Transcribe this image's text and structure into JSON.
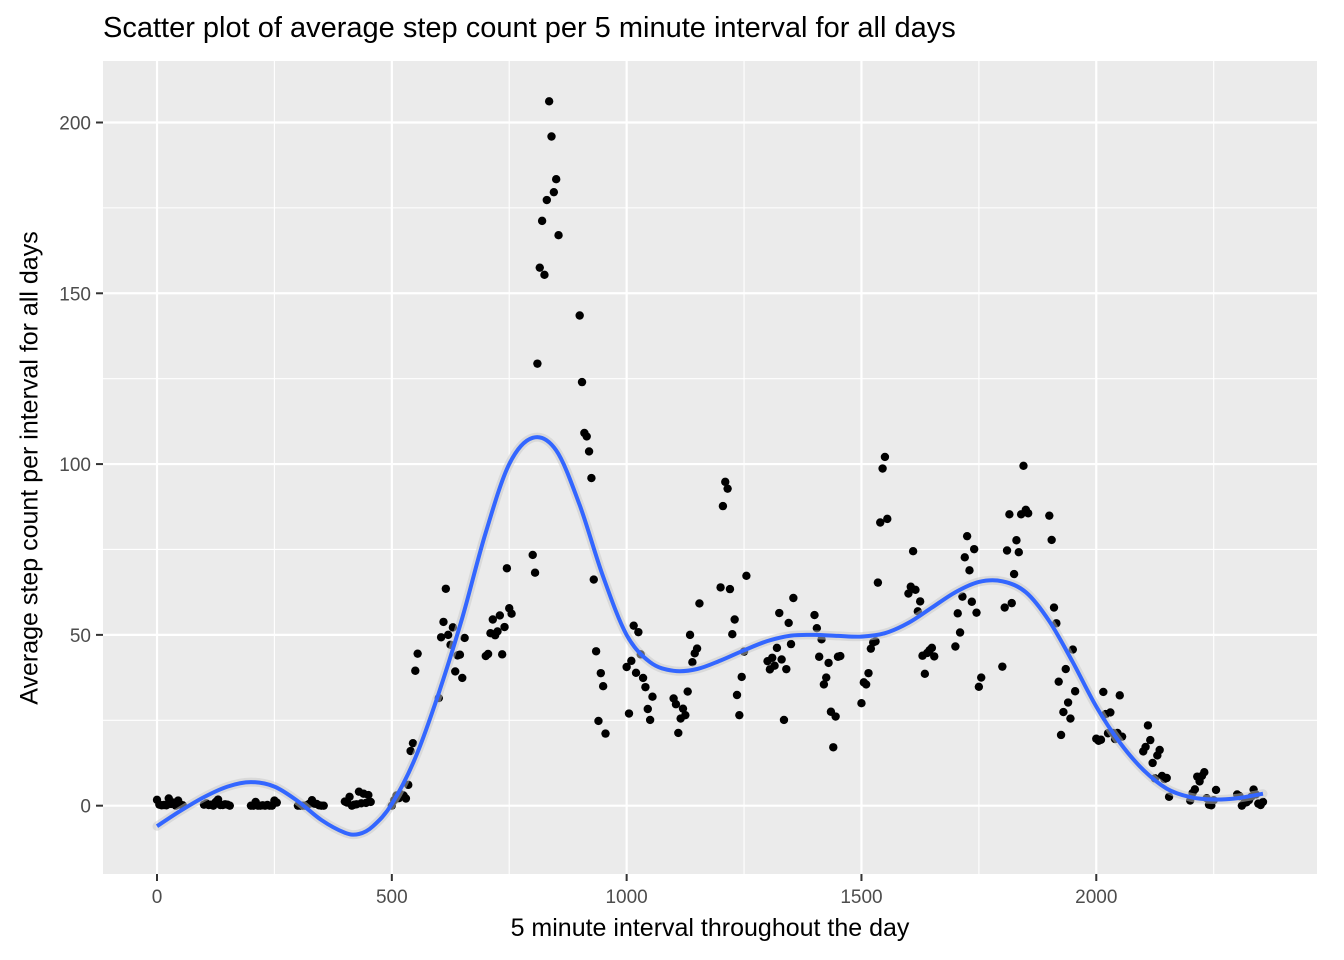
{
  "chart_data": {
    "type": "scatter",
    "title": "Scatter plot of average step count per 5 minute interval for all days",
    "xlabel": "5 minute interval throughout the day",
    "ylabel": "Average step count per interval for all days",
    "xlim": [
      -115,
      2470
    ],
    "ylim": [
      -20,
      218
    ],
    "x_ticks": [
      0,
      500,
      1000,
      1500,
      2000
    ],
    "y_ticks": [
      0,
      50,
      100,
      150,
      200
    ],
    "grid": true,
    "colors": {
      "panel": "#ebebeb",
      "grid": "#ffffff",
      "point": "#000000",
      "smooth": "#3366ff"
    },
    "points": [
      [
        0,
        1.7
      ],
      [
        5,
        0.3
      ],
      [
        10,
        0.1
      ],
      [
        15,
        0.2
      ],
      [
        20,
        0.1
      ],
      [
        25,
        2.1
      ],
      [
        30,
        0.5
      ],
      [
        35,
        0.9
      ],
      [
        40,
        0
      ],
      [
        45,
        1.5
      ],
      [
        50,
        0.3
      ],
      [
        55,
        0.1
      ],
      [
        100,
        0.3
      ],
      [
        105,
        0.7
      ],
      [
        110,
        0.2
      ],
      [
        115,
        0.3
      ],
      [
        120,
        0
      ],
      [
        125,
        1.1
      ],
      [
        130,
        1.8
      ],
      [
        135,
        0.2
      ],
      [
        140,
        0.2
      ],
      [
        145,
        0.4
      ],
      [
        150,
        0.3
      ],
      [
        155,
        0
      ],
      [
        200,
        0
      ],
      [
        205,
        0
      ],
      [
        210,
        1.1
      ],
      [
        215,
        0
      ],
      [
        220,
        0
      ],
      [
        225,
        0.1
      ],
      [
        230,
        0
      ],
      [
        235,
        0.2
      ],
      [
        240,
        0
      ],
      [
        245,
        0
      ],
      [
        250,
        1.5
      ],
      [
        255,
        0.9
      ],
      [
        300,
        0
      ],
      [
        305,
        0
      ],
      [
        310,
        0
      ],
      [
        315,
        0
      ],
      [
        320,
        0.2
      ],
      [
        325,
        0.6
      ],
      [
        330,
        1.6
      ],
      [
        335,
        0.6
      ],
      [
        340,
        0.5
      ],
      [
        345,
        0.1
      ],
      [
        350,
        0
      ],
      [
        355,
        0
      ],
      [
        400,
        1.2
      ],
      [
        405,
        0.9
      ],
      [
        410,
        2.6
      ],
      [
        415,
        0
      ],
      [
        420,
        0.3
      ],
      [
        425,
        0.4
      ],
      [
        430,
        4.1
      ],
      [
        435,
        0.7
      ],
      [
        440,
        3.5
      ],
      [
        445,
        0.8
      ],
      [
        450,
        3.1
      ],
      [
        455,
        1.1
      ],
      [
        500,
        0
      ],
      [
        505,
        1.6
      ],
      [
        510,
        3
      ],
      [
        515,
        2.2
      ],
      [
        520,
        3.3
      ],
      [
        525,
        3
      ],
      [
        530,
        2.1
      ],
      [
        535,
        6.1
      ],
      [
        540,
        16
      ],
      [
        545,
        18.3
      ],
      [
        550,
        39.5
      ],
      [
        555,
        44.5
      ],
      [
        600,
        31.5
      ],
      [
        605,
        49.3
      ],
      [
        610,
        53.8
      ],
      [
        615,
        63.5
      ],
      [
        620,
        50
      ],
      [
        625,
        47.1
      ],
      [
        630,
        52.2
      ],
      [
        635,
        39.3
      ],
      [
        640,
        44
      ],
      [
        645,
        44.2
      ],
      [
        650,
        37.4
      ],
      [
        655,
        49.1
      ],
      [
        700,
        43.8
      ],
      [
        705,
        44.4
      ],
      [
        710,
        50.5
      ],
      [
        715,
        54.5
      ],
      [
        720,
        49.9
      ],
      [
        725,
        51
      ],
      [
        730,
        55.7
      ],
      [
        735,
        44.3
      ],
      [
        740,
        52.3
      ],
      [
        745,
        69.5
      ],
      [
        750,
        57.8
      ],
      [
        755,
        56.2
      ],
      [
        800,
        73.4
      ],
      [
        805,
        68.2
      ],
      [
        810,
        129.4
      ],
      [
        815,
        157.5
      ],
      [
        820,
        171.2
      ],
      [
        825,
        155.4
      ],
      [
        830,
        177.3
      ],
      [
        835,
        206.2
      ],
      [
        840,
        195.9
      ],
      [
        845,
        179.6
      ],
      [
        850,
        183.4
      ],
      [
        855,
        167
      ],
      [
        900,
        143.5
      ],
      [
        905,
        124
      ],
      [
        910,
        109.1
      ],
      [
        915,
        108.1
      ],
      [
        920,
        103.7
      ],
      [
        925,
        95.9
      ],
      [
        930,
        66.2
      ],
      [
        935,
        45.2
      ],
      [
        940,
        24.8
      ],
      [
        945,
        38.8
      ],
      [
        950,
        34.98
      ],
      [
        955,
        21.1
      ],
      [
        1000,
        40.6
      ],
      [
        1005,
        26.98
      ],
      [
        1010,
        42.4
      ],
      [
        1015,
        52.7
      ],
      [
        1020,
        38.9
      ],
      [
        1025,
        50.8
      ],
      [
        1030,
        44.3
      ],
      [
        1035,
        37.4
      ],
      [
        1040,
        34.7
      ],
      [
        1045,
        28.3
      ],
      [
        1050,
        25.1
      ],
      [
        1055,
        31.9
      ],
      [
        1100,
        31.4
      ],
      [
        1105,
        29.7
      ],
      [
        1110,
        21.3
      ],
      [
        1115,
        25.5
      ],
      [
        1120,
        28.4
      ],
      [
        1125,
        26.5
      ],
      [
        1130,
        33.4
      ],
      [
        1135,
        50
      ],
      [
        1140,
        42
      ],
      [
        1145,
        44.6
      ],
      [
        1150,
        46
      ],
      [
        1155,
        59.2
      ],
      [
        1200,
        63.9
      ],
      [
        1205,
        87.7
      ],
      [
        1210,
        94.8
      ],
      [
        1215,
        92.8
      ],
      [
        1220,
        63.4
      ],
      [
        1225,
        50.2
      ],
      [
        1230,
        54.5
      ],
      [
        1235,
        32.4
      ],
      [
        1240,
        26.5
      ],
      [
        1245,
        37.7
      ],
      [
        1250,
        45.1
      ],
      [
        1255,
        67.3
      ],
      [
        1300,
        42.3
      ],
      [
        1305,
        39.9
      ],
      [
        1310,
        43.3
      ],
      [
        1315,
        40.98
      ],
      [
        1320,
        46.2
      ],
      [
        1325,
        56.4
      ],
      [
        1330,
        42.8
      ],
      [
        1335,
        25.1
      ],
      [
        1340,
        39.97
      ],
      [
        1345,
        53.5
      ],
      [
        1350,
        47.3
      ],
      [
        1355,
        60.8
      ],
      [
        1400,
        55.8
      ],
      [
        1405,
        51.96
      ],
      [
        1410,
        43.6
      ],
      [
        1415,
        48.7
      ],
      [
        1420,
        35.5
      ],
      [
        1425,
        37.5
      ],
      [
        1430,
        41.8
      ],
      [
        1435,
        27.5
      ],
      [
        1440,
        17.1
      ],
      [
        1445,
        26.1
      ],
      [
        1450,
        43.6
      ],
      [
        1455,
        43.8
      ],
      [
        1500,
        30
      ],
      [
        1505,
        36.1
      ],
      [
        1510,
        35.5
      ],
      [
        1515,
        38.8
      ],
      [
        1520,
        45.96
      ],
      [
        1525,
        47.8
      ],
      [
        1530,
        48.1
      ],
      [
        1535,
        65.3
      ],
      [
        1540,
        82.9
      ],
      [
        1545,
        98.7
      ],
      [
        1550,
        102.1
      ],
      [
        1555,
        83.96
      ],
      [
        1600,
        62.1
      ],
      [
        1605,
        64.1
      ],
      [
        1610,
        74.5
      ],
      [
        1615,
        63.2
      ],
      [
        1620,
        56.9
      ],
      [
        1625,
        59.8
      ],
      [
        1630,
        43.9
      ],
      [
        1635,
        38.6
      ],
      [
        1640,
        44.7
      ],
      [
        1645,
        45.5
      ],
      [
        1650,
        46.2
      ],
      [
        1655,
        43.7
      ],
      [
        1700,
        46.6
      ],
      [
        1705,
        56.3
      ],
      [
        1710,
        50.7
      ],
      [
        1715,
        61.2
      ],
      [
        1720,
        72.7
      ],
      [
        1725,
        78.9
      ],
      [
        1730,
        68.9
      ],
      [
        1735,
        59.7
      ],
      [
        1740,
        75.1
      ],
      [
        1745,
        56.5
      ],
      [
        1750,
        34.8
      ],
      [
        1755,
        37.5
      ],
      [
        1800,
        40.7
      ],
      [
        1805,
        58
      ],
      [
        1810,
        74.7
      ],
      [
        1815,
        85.3
      ],
      [
        1820,
        59.3
      ],
      [
        1825,
        67.8
      ],
      [
        1830,
        77.7
      ],
      [
        1835,
        74.2
      ],
      [
        1840,
        85.3
      ],
      [
        1845,
        99.5
      ],
      [
        1850,
        86.6
      ],
      [
        1855,
        85.6
      ],
      [
        1900,
        84.9
      ],
      [
        1905,
        77.8
      ],
      [
        1910,
        58
      ],
      [
        1915,
        53.4
      ],
      [
        1920,
        36.3
      ],
      [
        1925,
        20.7
      ],
      [
        1930,
        27.4
      ],
      [
        1935,
        40
      ],
      [
        1940,
        30.2
      ],
      [
        1945,
        25.5
      ],
      [
        1950,
        45.7
      ],
      [
        1955,
        33.5
      ],
      [
        2000,
        19.6
      ],
      [
        2005,
        19
      ],
      [
        2010,
        19.3
      ],
      [
        2015,
        33.3
      ],
      [
        2020,
        26.8
      ],
      [
        2025,
        21.2
      ],
      [
        2030,
        27.3
      ],
      [
        2035,
        21.3
      ],
      [
        2040,
        19.5
      ],
      [
        2045,
        21.3
      ],
      [
        2050,
        32.3
      ],
      [
        2055,
        20.2
      ],
      [
        2100,
        15.9
      ],
      [
        2105,
        17.2
      ],
      [
        2110,
        23.5
      ],
      [
        2115,
        19.2
      ],
      [
        2120,
        12.5
      ],
      [
        2125,
        8
      ],
      [
        2130,
        14.7
      ],
      [
        2135,
        16.3
      ],
      [
        2140,
        8.7
      ],
      [
        2145,
        7.8
      ],
      [
        2150,
        8.1
      ],
      [
        2155,
        2.6
      ],
      [
        2200,
        1.5
      ],
      [
        2205,
        3.7
      ],
      [
        2210,
        4.8
      ],
      [
        2215,
        8.5
      ],
      [
        2220,
        7.1
      ],
      [
        2225,
        8.7
      ],
      [
        2230,
        9.8
      ],
      [
        2235,
        2.2
      ],
      [
        2240,
        0.3
      ],
      [
        2245,
        0.1
      ],
      [
        2250,
        1.6
      ],
      [
        2255,
        4.6
      ],
      [
        2300,
        3.3
      ],
      [
        2305,
        2.8
      ],
      [
        2310,
        0
      ],
      [
        2315,
        0.8
      ],
      [
        2320,
        1
      ],
      [
        2325,
        1.6
      ],
      [
        2330,
        2.6
      ],
      [
        2335,
        4.7
      ],
      [
        2340,
        3.3
      ],
      [
        2345,
        0.6
      ],
      [
        2350,
        0.2
      ],
      [
        2355,
        1.1
      ]
    ],
    "smooth": [
      [
        0,
        -6
      ],
      [
        50,
        -1.5
      ],
      [
        100,
        2.5
      ],
      [
        150,
        5.6
      ],
      [
        200,
        6.9
      ],
      [
        250,
        5.6
      ],
      [
        300,
        1.3
      ],
      [
        350,
        -4.2
      ],
      [
        400,
        -7.9
      ],
      [
        430,
        -8.3
      ],
      [
        460,
        -6
      ],
      [
        500,
        0.5
      ],
      [
        550,
        14
      ],
      [
        600,
        33
      ],
      [
        650,
        55
      ],
      [
        700,
        80
      ],
      [
        750,
        100
      ],
      [
        800,
        107.7
      ],
      [
        850,
        104
      ],
      [
        900,
        88
      ],
      [
        950,
        67
      ],
      [
        1000,
        50
      ],
      [
        1050,
        42
      ],
      [
        1100,
        39.5
      ],
      [
        1150,
        40
      ],
      [
        1200,
        42.5
      ],
      [
        1250,
        45.5
      ],
      [
        1300,
        48.2
      ],
      [
        1350,
        49.8
      ],
      [
        1400,
        50
      ],
      [
        1450,
        49.7
      ],
      [
        1500,
        49.5
      ],
      [
        1550,
        50.5
      ],
      [
        1600,
        53.5
      ],
      [
        1650,
        58
      ],
      [
        1700,
        62.5
      ],
      [
        1750,
        65.5
      ],
      [
        1800,
        65.7
      ],
      [
        1850,
        62.5
      ],
      [
        1900,
        54
      ],
      [
        1950,
        42
      ],
      [
        2000,
        29
      ],
      [
        2050,
        18.5
      ],
      [
        2100,
        10.5
      ],
      [
        2150,
        5
      ],
      [
        2200,
        2.5
      ],
      [
        2250,
        1.8
      ],
      [
        2300,
        2.2
      ],
      [
        2355,
        3.5
      ]
    ]
  }
}
